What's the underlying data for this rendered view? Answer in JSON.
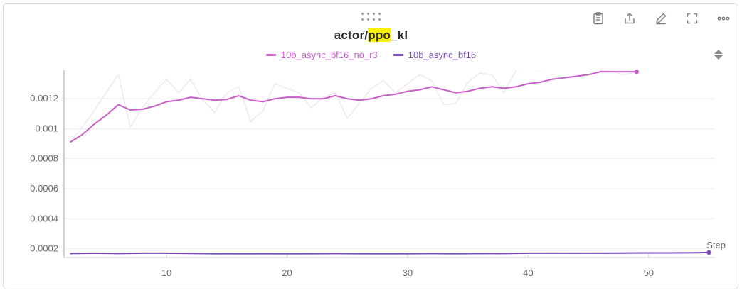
{
  "panel": {
    "title_prefix": "actor/",
    "title_highlight": "ppo",
    "title_suffix": "_kl",
    "toolbar_icons": [
      "clipboard-icon",
      "share-icon",
      "edit-icon",
      "fullscreen-icon",
      "more-icon"
    ]
  },
  "colors": {
    "series_no_r3": "#c85ec8",
    "series_no_r3_raw": "#efe6f2",
    "series_bf16": "#7b4db8",
    "series_bf16_raw": "#ece7f3",
    "grid": "#ececec",
    "axis": "#d0d0d0"
  },
  "chart_data": {
    "type": "line",
    "title": "actor/ppo_kl",
    "xlabel": "Step",
    "ylabel": "",
    "xlim": [
      1.5,
      55.5
    ],
    "ylim": [
      0.000165,
      0.00139
    ],
    "xticks": [
      10,
      20,
      30,
      40,
      50
    ],
    "yticks": [
      0.0002,
      0.0004,
      0.0006,
      0.0008,
      0.001,
      0.0012
    ],
    "ytick_labels": [
      "0.0002",
      "0.0004",
      "0.0006",
      "0.0008",
      "0.001",
      "0.0012"
    ],
    "grid": true,
    "legend_position": "top-center",
    "series": [
      {
        "name": "10b_async_bf16_no_r3",
        "x": [
          2,
          3,
          4,
          5,
          6,
          7,
          8,
          9,
          10,
          11,
          12,
          13,
          14,
          15,
          16,
          17,
          18,
          19,
          20,
          21,
          22,
          23,
          24,
          25,
          26,
          27,
          28,
          29,
          30,
          31,
          32,
          33,
          34,
          35,
          36,
          37,
          38,
          39,
          40,
          41,
          42,
          43,
          44,
          45,
          46,
          47,
          48,
          49
        ],
        "smoothed": [
          0.00091,
          0.00096,
          0.00103,
          0.00109,
          0.00116,
          0.001125,
          0.00113,
          0.00115,
          0.00118,
          0.00119,
          0.00121,
          0.0012,
          0.00119,
          0.001195,
          0.00122,
          0.00119,
          0.00118,
          0.0012,
          0.00121,
          0.00121,
          0.0012,
          0.0012,
          0.00122,
          0.0012,
          0.00119,
          0.0012,
          0.00122,
          0.00123,
          0.00125,
          0.00126,
          0.00128,
          0.00126,
          0.00124,
          0.00125,
          0.00127,
          0.00128,
          0.00127,
          0.00128,
          0.0013,
          0.00131,
          0.00133,
          0.00134,
          0.00135,
          0.00136,
          0.00138,
          0.00138,
          0.00138,
          0.00138
        ],
        "raw": [
          0.00091,
          0.00101,
          0.00112,
          0.00124,
          0.00136,
          0.00101,
          0.00114,
          0.00124,
          0.00133,
          0.00124,
          0.00133,
          0.00119,
          0.00111,
          0.00124,
          0.00128,
          0.00105,
          0.00112,
          0.0013,
          0.00127,
          0.00124,
          0.00114,
          0.00121,
          0.00124,
          0.00107,
          0.00117,
          0.00127,
          0.00132,
          0.00124,
          0.0013,
          0.00136,
          0.00132,
          0.00116,
          0.00117,
          0.00131,
          0.00137,
          0.00136,
          0.00124,
          0.00139,
          0.0014,
          0.00139,
          0.0014,
          0.00142,
          0.00142,
          0.0014,
          0.00139,
          0.00138,
          0.00136,
          0.00138
        ]
      },
      {
        "name": "10b_async_bf16",
        "x": [
          2,
          4,
          6,
          8,
          10,
          12,
          14,
          16,
          18,
          20,
          22,
          24,
          26,
          28,
          30,
          32,
          34,
          36,
          38,
          40,
          42,
          44,
          46,
          48,
          50,
          52,
          54,
          55
        ],
        "smoothed": [
          0.000168,
          0.00017,
          0.000168,
          0.00017,
          0.00017,
          0.000169,
          0.000167,
          0.000167,
          0.000167,
          0.000167,
          0.000167,
          0.000168,
          0.000167,
          0.000167,
          0.000167,
          0.000168,
          0.000167,
          0.000168,
          0.000168,
          0.00017,
          0.00017,
          0.00017,
          0.00017,
          0.000171,
          0.000172,
          0.000172,
          0.000173,
          0.000175
        ],
        "raw": [
          0.00017,
          0.000172,
          0.000166,
          0.000172,
          0.000169,
          0.000171,
          0.000165,
          0.000168,
          0.000166,
          0.000168,
          0.000166,
          0.00017,
          0.000166,
          0.000168,
          0.000166,
          0.00017,
          0.000166,
          0.000169,
          0.000167,
          0.000171,
          0.000169,
          0.000172,
          0.000169,
          0.000173,
          0.000171,
          0.000174,
          0.000172,
          0.000175
        ]
      }
    ]
  }
}
